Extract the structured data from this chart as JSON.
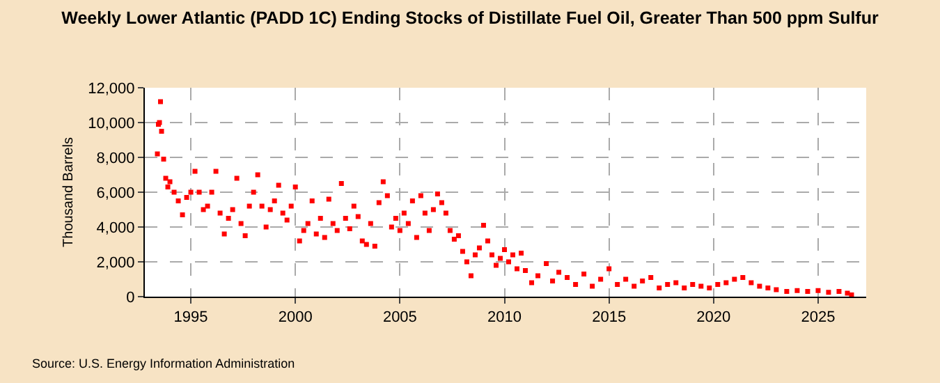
{
  "chart_data": {
    "type": "scatter",
    "title": "Weekly Lower Atlantic (PADD 1C) Ending Stocks of Distillate Fuel Oil, Greater Than 500 ppm Sulfur",
    "ylabel": "Thousand Barrels",
    "annotations": [
      "Source: U.S. Energy Information Administration"
    ],
    "x": [
      1993.4,
      1993.45,
      1993.5,
      1993.55,
      1993.6,
      1993.7,
      1993.8,
      1993.9,
      1994.0,
      1994.2,
      1994.4,
      1994.6,
      1994.8,
      1995.0,
      1995.2,
      1995.4,
      1995.6,
      1995.8,
      1996.0,
      1996.2,
      1996.4,
      1996.6,
      1996.8,
      1997.0,
      1997.2,
      1997.4,
      1997.6,
      1997.8,
      1998.0,
      1998.2,
      1998.4,
      1998.6,
      1998.8,
      1999.0,
      1999.2,
      1999.4,
      1999.6,
      1999.8,
      2000.0,
      2000.2,
      2000.4,
      2000.6,
      2000.8,
      2001.0,
      2001.2,
      2001.4,
      2001.6,
      2001.8,
      2002.0,
      2002.2,
      2002.4,
      2002.6,
      2002.8,
      2003.0,
      2003.2,
      2003.4,
      2003.6,
      2003.8,
      2004.0,
      2004.2,
      2004.4,
      2004.6,
      2004.8,
      2005.0,
      2005.2,
      2005.4,
      2005.6,
      2005.8,
      2006.0,
      2006.2,
      2006.4,
      2006.6,
      2006.8,
      2007.0,
      2007.2,
      2007.4,
      2007.6,
      2007.8,
      2008.0,
      2008.2,
      2008.4,
      2008.6,
      2008.8,
      2009.0,
      2009.2,
      2009.4,
      2009.6,
      2009.8,
      2010.0,
      2010.2,
      2010.4,
      2010.6,
      2010.8,
      2011.0,
      2011.3,
      2011.6,
      2012.0,
      2012.3,
      2012.6,
      2013.0,
      2013.4,
      2013.8,
      2014.2,
      2014.6,
      2015.0,
      2015.4,
      2015.8,
      2016.2,
      2016.6,
      2017.0,
      2017.4,
      2017.8,
      2018.2,
      2018.6,
      2019.0,
      2019.4,
      2019.8,
      2020.2,
      2020.6,
      2021.0,
      2021.4,
      2021.8,
      2022.2,
      2022.6,
      2023.0,
      2023.5,
      2024.0,
      2024.5,
      2025.0,
      2025.5,
      2026.0,
      2026.4,
      2026.6
    ],
    "values": [
      8200,
      9900,
      10000,
      11200,
      9500,
      7900,
      6800,
      6300,
      6600,
      6000,
      5500,
      4700,
      5700,
      6000,
      7200,
      6000,
      5000,
      5200,
      6000,
      7200,
      4800,
      3600,
      4500,
      5000,
      6800,
      4200,
      3500,
      5200,
      6000,
      7000,
      5200,
      4000,
      5000,
      5500,
      6400,
      4800,
      4400,
      5200,
      6300,
      3200,
      3800,
      4200,
      5500,
      3600,
      4500,
      3400,
      5600,
      4200,
      3800,
      6500,
      4500,
      3900,
      5200,
      4600,
      3200,
      3000,
      4200,
      2900,
      5400,
      6600,
      5800,
      4000,
      4500,
      3800,
      4800,
      4200,
      5500,
      3400,
      5800,
      4800,
      3800,
      5000,
      5900,
      5400,
      4800,
      3800,
      3300,
      3500,
      2600,
      2000,
      1200,
      2400,
      2800,
      4100,
      3200,
      2400,
      1800,
      2200,
      2700,
      2000,
      2400,
      1600,
      2500,
      1500,
      800,
      1200,
      1900,
      900,
      1400,
      1100,
      700,
      1300,
      600,
      1000,
      1600,
      700,
      1000,
      600,
      900,
      1100,
      500,
      700,
      800,
      500,
      700,
      600,
      500,
      700,
      800,
      1000,
      1100,
      800,
      600,
      500,
      400,
      300,
      350,
      300,
      350,
      250,
      300,
      200,
      100
    ],
    "color": "#ff0000",
    "marker": "square",
    "grid": true,
    "xlim": [
      1992.8,
      2027.3
    ],
    "xticks": [
      1995,
      2000,
      2005,
      2010,
      2015,
      2020,
      2025
    ],
    "ylim": [
      0,
      12000
    ],
    "yticks": [
      0,
      {
        "value": 2000,
        "label": "2,000"
      },
      {
        "value": 4000,
        "label": "4,000"
      },
      {
        "value": 6000,
        "label": "6,000"
      },
      {
        "value": 8000,
        "label": "8,000"
      },
      {
        "value": 10000,
        "label": "10,000"
      },
      {
        "value": 12000,
        "label": "12,000"
      }
    ]
  }
}
